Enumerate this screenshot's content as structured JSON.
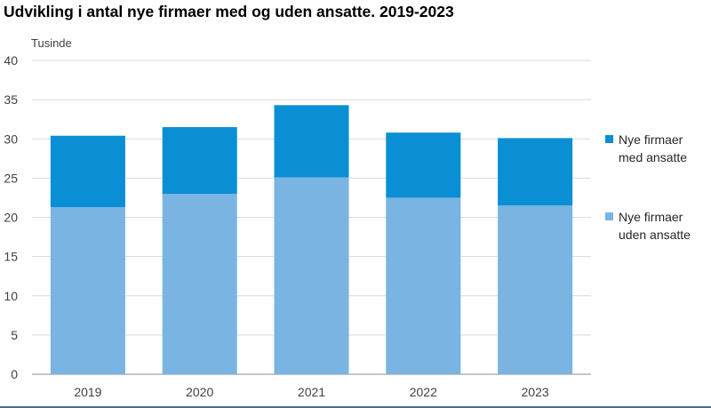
{
  "chart_data": {
    "type": "bar",
    "stacked": true,
    "title": "Udvikling i antal nye firmaer med og uden ansatte. 2019-2023",
    "ylabel": "Tusinde",
    "xlabel": "",
    "categories": [
      "2019",
      "2020",
      "2021",
      "2022",
      "2023"
    ],
    "ylim": [
      0,
      40
    ],
    "yticks": [
      "0",
      "5",
      "10",
      "15",
      "20",
      "25",
      "30",
      "35",
      "40"
    ],
    "grid": true,
    "legend_position": "right",
    "series": [
      {
        "name": "Nye firmaer uden ansatte",
        "legend_lines": [
          "Nye firmaer",
          "uden ansatte"
        ],
        "color": "#79b4e3",
        "values": [
          21.3,
          23.0,
          25.1,
          22.5,
          21.5
        ]
      },
      {
        "name": "Nye firmaer med ansatte",
        "legend_lines": [
          "Nye firmaer",
          "med ansatte"
        ],
        "color": "#0a8fd4",
        "values": [
          9.1,
          8.5,
          9.2,
          8.3,
          8.6
        ]
      }
    ]
  }
}
